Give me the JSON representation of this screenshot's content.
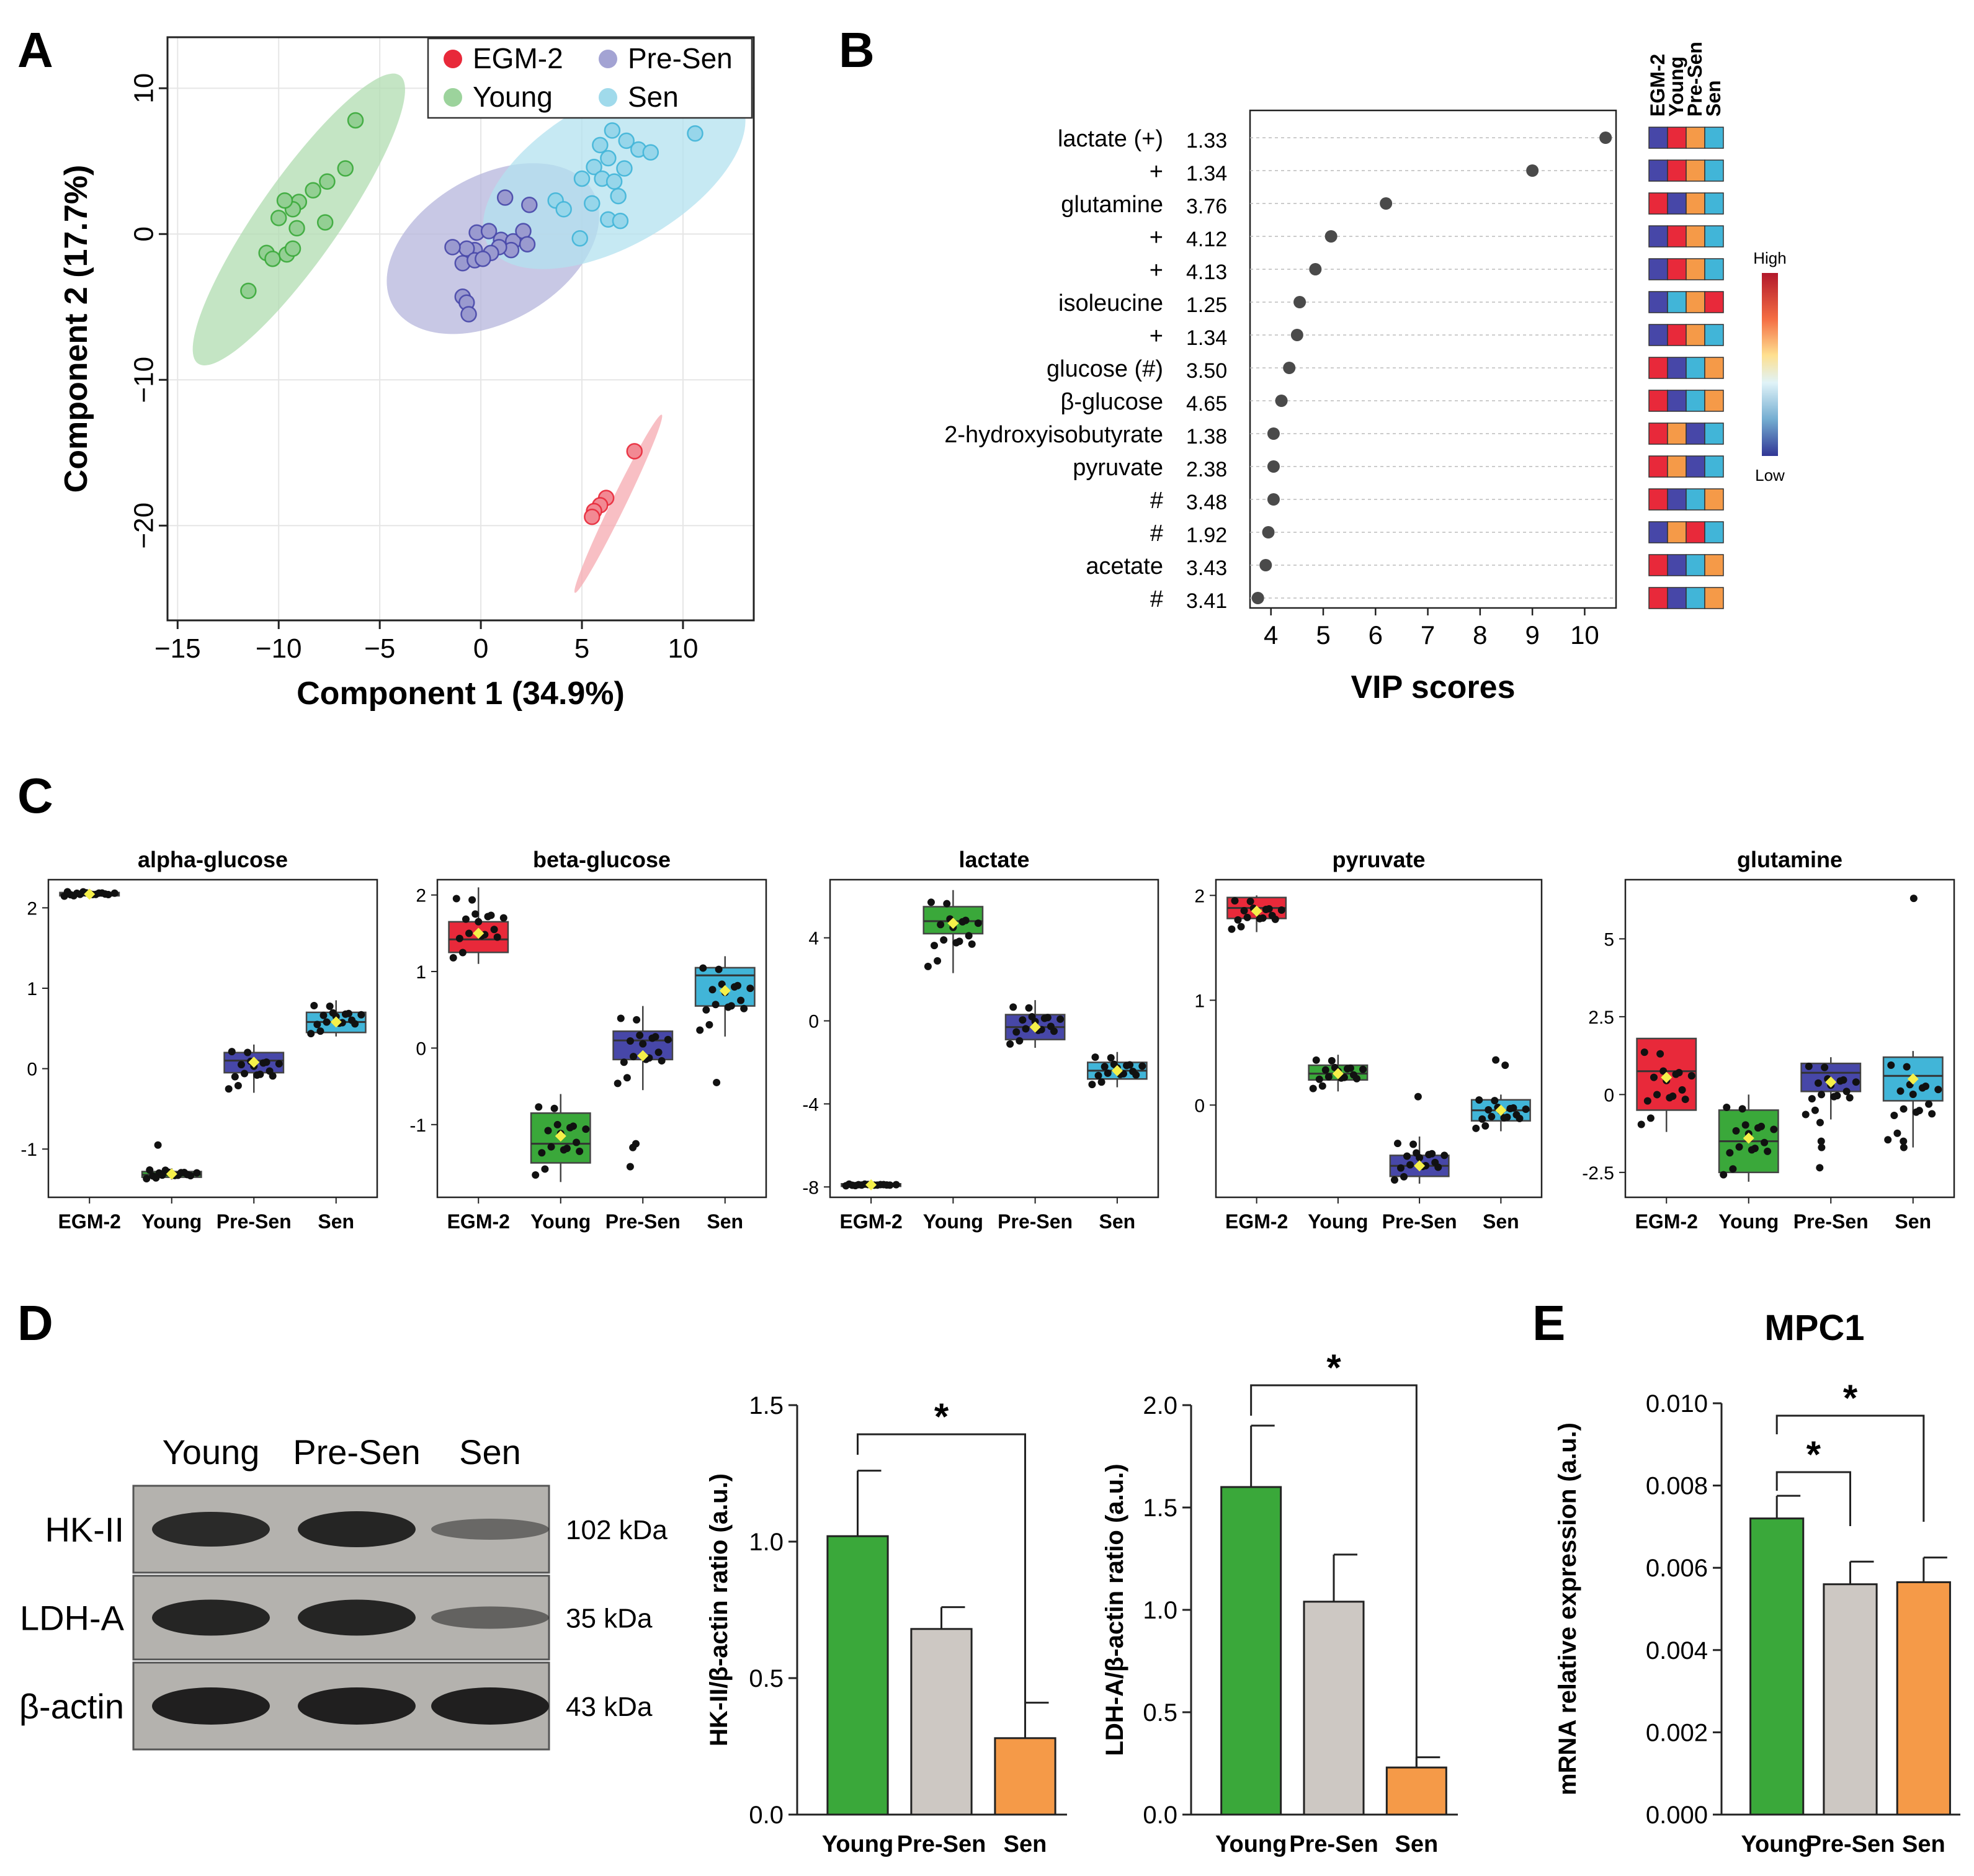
{
  "colors": {
    "EGM-2": "#e8293a",
    "Young": "#3aa83a",
    "Pre-Sen": "#4747a8",
    "Sen": "#41b5d8",
    "grey": "#cdc8c3",
    "orange": "#f59a48"
  },
  "panels": {
    "A": "A",
    "B": "B",
    "C": "C",
    "D": "D",
    "E": "E"
  },
  "chart_data": [
    {
      "id": "A",
      "type": "scatter",
      "xlabel": "Component 1 (34.9%)",
      "ylabel": "Component 2 (17.7%)",
      "xlim": [
        -15.5,
        13.5
      ],
      "ylim": [
        -26.5,
        13.5
      ],
      "xticks": [
        -15,
        -10,
        -5,
        0,
        5,
        10
      ],
      "yticks": [
        10,
        0,
        -10,
        -20
      ],
      "legend": {
        "placement": "top-right",
        "entries": [
          "EGM-2",
          "Pre-Sen",
          "Young",
          "Sen"
        ]
      },
      "grid": true,
      "series": [
        {
          "name": "EGM-2",
          "ellipse": {
            "cx": 6.8,
            "cy": -18.5,
            "rx": 4.9,
            "ry": 0.35,
            "angle": 64
          },
          "points": [
            [
              7.6,
              -14.9
            ],
            [
              6.2,
              -18.1
            ],
            [
              5.9,
              -18.6
            ],
            [
              5.6,
              -19.0
            ],
            [
              5.5,
              -19.4
            ]
          ]
        },
        {
          "name": "Young",
          "ellipse": {
            "cx": -9.0,
            "cy": 1.0,
            "rx": 8.7,
            "ry": 2.0,
            "angle": 55
          },
          "points": [
            [
              -6.2,
              7.8
            ],
            [
              -6.7,
              4.5
            ],
            [
              -7.6,
              3.6
            ],
            [
              -8.3,
              3.0
            ],
            [
              -9.0,
              2.2
            ],
            [
              -9.3,
              1.7
            ],
            [
              -9.7,
              2.3
            ],
            [
              -10.0,
              1.1
            ],
            [
              -9.1,
              0.4
            ],
            [
              -7.7,
              0.8
            ],
            [
              -10.6,
              -1.3
            ],
            [
              -10.3,
              -1.7
            ],
            [
              -9.6,
              -1.4
            ],
            [
              -9.3,
              -1.0
            ],
            [
              -11.5,
              -3.9
            ]
          ]
        },
        {
          "name": "Pre-Sen",
          "ellipse": {
            "cx": 0.6,
            "cy": -1.0,
            "rx": 5.7,
            "ry": 3.6,
            "angle": 30
          },
          "points": [
            [
              1.2,
              2.5
            ],
            [
              2.4,
              2.0
            ],
            [
              -0.2,
              0.1
            ],
            [
              0.4,
              0.2
            ],
            [
              1.0,
              -0.4
            ],
            [
              1.6,
              -0.5
            ],
            [
              2.1,
              0.2
            ],
            [
              2.3,
              -0.7
            ],
            [
              1.5,
              -1.1
            ],
            [
              0.9,
              -0.9
            ],
            [
              0.5,
              -1.3
            ],
            [
              -0.3,
              -1.1
            ],
            [
              -0.7,
              -1.0
            ],
            [
              -1.4,
              -0.9
            ],
            [
              -0.9,
              -2.0
            ],
            [
              -0.3,
              -1.8
            ],
            [
              0.1,
              -1.7
            ],
            [
              -0.9,
              -4.3
            ],
            [
              -0.7,
              -4.7
            ],
            [
              -0.6,
              -5.5
            ]
          ]
        },
        {
          "name": "Sen",
          "ellipse": {
            "cx": 6.6,
            "cy": 4.2,
            "rx": 7.2,
            "ry": 3.6,
            "angle": 30
          },
          "points": [
            [
              6.5,
              7.1
            ],
            [
              7.2,
              6.4
            ],
            [
              10.6,
              6.9
            ],
            [
              5.9,
              6.1
            ],
            [
              7.8,
              5.8
            ],
            [
              8.4,
              5.6
            ],
            [
              6.3,
              5.2
            ],
            [
              5.6,
              4.6
            ],
            [
              7.1,
              4.5
            ],
            [
              6.0,
              3.8
            ],
            [
              6.6,
              3.6
            ],
            [
              5.0,
              3.8
            ],
            [
              6.8,
              2.6
            ],
            [
              5.5,
              2.1
            ],
            [
              3.7,
              2.3
            ],
            [
              4.1,
              1.7
            ],
            [
              6.3,
              1.0
            ],
            [
              6.9,
              0.9
            ],
            [
              4.9,
              -0.3
            ]
          ]
        }
      ]
    },
    {
      "id": "B",
      "type": "dot",
      "xlabel": "VIP scores",
      "xlim": [
        3.6,
        10.6
      ],
      "xticks": [
        4,
        5,
        6,
        7,
        8,
        9,
        10
      ],
      "heatmap_columns": [
        "EGM-2",
        "Young",
        "Pre-Sen",
        "Sen"
      ],
      "colorbar": {
        "high": "High",
        "low": "Low"
      },
      "rows": [
        {
          "label": "lactate (+)",
          "ppm": "1.33",
          "vip": 10.4,
          "cells": [
            "Pre-Sen",
            "EGM-2",
            "orange",
            "Sen"
          ]
        },
        {
          "label": "+",
          "ppm": "1.34",
          "vip": 9.0,
          "cells": [
            "Pre-Sen",
            "EGM-2",
            "orange",
            "Sen"
          ]
        },
        {
          "label": "glutamine",
          "ppm": "3.76",
          "vip": 6.2,
          "cells": [
            "EGM-2",
            "Pre-Sen",
            "orange",
            "Sen"
          ]
        },
        {
          "label": "+",
          "ppm": "4.12",
          "vip": 5.15,
          "cells": [
            "Pre-Sen",
            "EGM-2",
            "orange",
            "Sen"
          ]
        },
        {
          "label": "+",
          "ppm": "4.13",
          "vip": 4.85,
          "cells": [
            "Pre-Sen",
            "EGM-2",
            "orange",
            "Sen"
          ]
        },
        {
          "label": "isoleucine",
          "ppm": "1.25",
          "vip": 4.55,
          "cells": [
            "Pre-Sen",
            "Sen",
            "orange",
            "EGM-2"
          ]
        },
        {
          "label": "+",
          "ppm": "1.34",
          "vip": 4.5,
          "cells": [
            "Pre-Sen",
            "EGM-2",
            "orange",
            "Sen"
          ]
        },
        {
          "label": "glucose (#)",
          "ppm": "3.50",
          "vip": 4.35,
          "cells": [
            "EGM-2",
            "Pre-Sen",
            "Sen",
            "orange"
          ]
        },
        {
          "label": "β-glucose",
          "ppm": "4.65",
          "vip": 4.2,
          "cells": [
            "EGM-2",
            "Pre-Sen",
            "Sen",
            "orange"
          ]
        },
        {
          "label": "2-hydroxyisobutyrate",
          "ppm": "1.38",
          "vip": 4.05,
          "cells": [
            "EGM-2",
            "orange",
            "Pre-Sen",
            "Sen"
          ]
        },
        {
          "label": "pyruvate",
          "ppm": "2.38",
          "vip": 4.05,
          "cells": [
            "EGM-2",
            "orange",
            "Pre-Sen",
            "Sen"
          ]
        },
        {
          "label": "#",
          "ppm": "3.48",
          "vip": 4.05,
          "cells": [
            "EGM-2",
            "Pre-Sen",
            "Sen",
            "orange"
          ]
        },
        {
          "label": "#",
          "ppm": "1.92",
          "vip": 3.95,
          "cells": [
            "Pre-Sen",
            "orange",
            "EGM-2",
            "Sen"
          ]
        },
        {
          "label": "acetate",
          "ppm": "3.43",
          "vip": 3.9,
          "cells": [
            "EGM-2",
            "Pre-Sen",
            "Sen",
            "orange"
          ]
        },
        {
          "label": "#",
          "ppm": "3.41",
          "vip": 3.75,
          "cells": [
            "EGM-2",
            "Pre-Sen",
            "Sen",
            "orange"
          ]
        }
      ]
    },
    {
      "id": "C",
      "type": "box",
      "categories": [
        "EGM-2",
        "Young",
        "Pre-Sen",
        "Sen"
      ],
      "plots": [
        {
          "title": "alpha-glucose",
          "ylim": [
            -1.6,
            2.35
          ],
          "yticks": [
            2,
            1,
            0,
            -1
          ],
          "yticklabels": [
            "2",
            "1",
            "0",
            "-1"
          ],
          "boxes": [
            {
              "q1": 2.15,
              "med": 2.17,
              "q3": 2.19,
              "lo": 2.14,
              "hi": 2.21,
              "mean": 2.17
            },
            {
              "q1": -1.35,
              "med": -1.32,
              "q3": -1.28,
              "lo": -1.38,
              "hi": -1.24,
              "mean": -1.31
            },
            {
              "q1": -0.05,
              "med": 0.1,
              "q3": 0.2,
              "lo": -0.3,
              "hi": 0.3,
              "mean": 0.08
            },
            {
              "q1": 0.45,
              "med": 0.58,
              "q3": 0.7,
              "lo": 0.4,
              "hi": 0.85,
              "mean": 0.58
            }
          ],
          "outliers": [
            [
              1,
              -0.95
            ]
          ]
        },
        {
          "title": "beta-glucose",
          "ylim": [
            -1.95,
            2.2
          ],
          "yticks": [
            2,
            1,
            0,
            -1
          ],
          "yticklabels": [
            "2",
            "1",
            "0",
            "-1"
          ],
          "boxes": [
            {
              "q1": 1.25,
              "med": 1.42,
              "q3": 1.65,
              "lo": 1.1,
              "hi": 2.1,
              "mean": 1.5
            },
            {
              "q1": -1.5,
              "med": -1.25,
              "q3": -0.85,
              "lo": -1.75,
              "hi": -0.6,
              "mean": -1.15
            },
            {
              "q1": -0.15,
              "med": 0.1,
              "q3": 0.22,
              "lo": -0.55,
              "hi": 0.55,
              "mean": -0.1
            },
            {
              "q1": 0.55,
              "med": 0.95,
              "q3": 1.05,
              "lo": 0.15,
              "hi": 1.2,
              "mean": 0.75
            }
          ],
          "outliers": [
            [
              2,
              -1.25
            ],
            [
              2,
              -1.55
            ],
            [
              2,
              -1.3
            ],
            [
              3,
              -0.45
            ]
          ]
        },
        {
          "title": "lactate",
          "ylim": [
            -8.5,
            6.8
          ],
          "yticks": [
            4,
            0,
            -4,
            -8
          ],
          "yticklabels": [
            "4",
            "0",
            "-4",
            "-8"
          ],
          "boxes": [
            {
              "q1": -7.95,
              "med": -7.9,
              "q3": -7.85,
              "lo": -7.95,
              "hi": -7.85,
              "mean": -7.9
            },
            {
              "q1": 4.2,
              "med": 4.8,
              "q3": 5.5,
              "lo": 2.3,
              "hi": 6.3,
              "mean": 4.7
            },
            {
              "q1": -0.9,
              "med": -0.3,
              "q3": 0.3,
              "lo": -1.3,
              "hi": 1.0,
              "mean": -0.3
            },
            {
              "q1": -2.8,
              "med": -2.4,
              "q3": -2.0,
              "lo": -3.2,
              "hi": -1.5,
              "mean": -2.4
            }
          ],
          "outliers": []
        },
        {
          "title": "pyruvate",
          "ylim": [
            -0.88,
            2.15
          ],
          "yticks": [
            2,
            1,
            0
          ],
          "yticklabels": [
            "2",
            "1",
            "0"
          ],
          "boxes": [
            {
              "q1": 1.78,
              "med": 1.88,
              "q3": 1.98,
              "lo": 1.65,
              "hi": 2.0,
              "mean": 1.85
            },
            {
              "q1": 0.24,
              "med": 0.3,
              "q3": 0.38,
              "lo": 0.13,
              "hi": 0.48,
              "mean": 0.3
            },
            {
              "q1": -0.68,
              "med": -0.58,
              "q3": -0.48,
              "lo": -0.75,
              "hi": -0.3,
              "mean": -0.58
            },
            {
              "q1": -0.15,
              "med": -0.05,
              "q3": 0.05,
              "lo": -0.25,
              "hi": 0.1,
              "mean": -0.05
            }
          ],
          "outliers": [
            [
              2,
              0.08
            ],
            [
              3,
              0.43
            ],
            [
              3,
              0.38
            ]
          ]
        },
        {
          "title": "glutamine",
          "ylim": [
            -3.3,
            6.9
          ],
          "yticks": [
            5,
            2.5,
            0,
            -2.5
          ],
          "yticklabels": [
            "5",
            "2.5",
            "0",
            "-2.5"
          ],
          "boxes": [
            {
              "q1": -0.5,
              "med": 0.75,
              "q3": 1.8,
              "lo": -1.2,
              "hi": 1.8,
              "mean": 0.55
            },
            {
              "q1": -2.5,
              "med": -1.5,
              "q3": -0.5,
              "lo": -2.8,
              "hi": 0.0,
              "mean": -1.4
            },
            {
              "q1": 0.1,
              "med": 0.7,
              "q3": 1.0,
              "lo": -0.8,
              "hi": 1.2,
              "mean": 0.4
            },
            {
              "q1": -0.2,
              "med": 0.6,
              "q3": 1.2,
              "lo": -1.7,
              "hi": 1.4,
              "mean": 0.5
            }
          ],
          "outliers": [
            [
              2,
              -2.35
            ],
            [
              2,
              -1.7
            ],
            [
              2,
              -1.5
            ],
            [
              2,
              -0.9
            ],
            [
              3,
              6.3
            ],
            [
              3,
              -1.5
            ],
            [
              3,
              -1.7
            ]
          ]
        }
      ]
    },
    {
      "id": "D-blot",
      "type": "table",
      "lanes": [
        "Young",
        "Pre-Sen",
        "Sen"
      ],
      "bands": [
        {
          "name": "HK-II",
          "kda": "102 kDa",
          "intensity": [
            0.85,
            0.9,
            0.3
          ]
        },
        {
          "name": "LDH-A",
          "kda": "35 kDa",
          "intensity": [
            0.9,
            0.9,
            0.35
          ]
        },
        {
          "name": "β-actin",
          "kda": "43 kDa",
          "intensity": [
            0.95,
            0.95,
            0.95
          ]
        }
      ]
    },
    {
      "id": "D1",
      "type": "bar",
      "categories": [
        "Young",
        "Pre-Sen",
        "Sen"
      ],
      "ylabel": "HK-II/β-actin ratio (a.u.)",
      "ylim": [
        0,
        1.5
      ],
      "yticks": [
        0,
        0.5,
        1.0,
        1.5
      ],
      "yticklabels": [
        "0.0",
        "0.5",
        "1.0",
        "1.5"
      ],
      "values": [
        1.02,
        0.68,
        0.28
      ],
      "errors": [
        0.24,
        0.08,
        0.13
      ],
      "colors": [
        "#3aa83a",
        "#cdc8c3",
        "#f59a48"
      ],
      "significance": [
        {
          "from": 0,
          "to": 2,
          "label": "*"
        }
      ]
    },
    {
      "id": "D2",
      "type": "bar",
      "categories": [
        "Young",
        "Pre-Sen",
        "Sen"
      ],
      "ylabel": "LDH-A/β-actin ratio (a.u.)",
      "ylim": [
        0,
        2.0
      ],
      "yticks": [
        0,
        0.5,
        1.0,
        1.5,
        2.0
      ],
      "yticklabels": [
        "0.0",
        "0.5",
        "1.0",
        "1.5",
        "2.0"
      ],
      "values": [
        1.6,
        1.04,
        0.23
      ],
      "errors": [
        0.3,
        0.23,
        0.05
      ],
      "colors": [
        "#3aa83a",
        "#cdc8c3",
        "#f59a48"
      ],
      "significance": [
        {
          "from": 0,
          "to": 2,
          "label": "*"
        }
      ]
    },
    {
      "id": "E",
      "type": "bar",
      "title": "MPC1",
      "categories": [
        "Young",
        "Pre-Sen",
        "Sen"
      ],
      "ylabel": "mRNA relative expression (a.u.)",
      "ylim": [
        0,
        0.01
      ],
      "yticks": [
        0,
        0.002,
        0.004,
        0.006,
        0.008,
        0.01
      ],
      "yticklabels": [
        "0.000",
        "0.002",
        "0.004",
        "0.006",
        "0.008",
        "0.010"
      ],
      "values": [
        0.0072,
        0.0056,
        0.00565
      ],
      "errors": [
        0.00055,
        0.00055,
        0.0006
      ],
      "colors": [
        "#3aa83a",
        "#cdc8c3",
        "#f59a48"
      ],
      "significance": [
        {
          "from": 0,
          "to": 1,
          "label": "*"
        },
        {
          "from": 0,
          "to": 2,
          "label": "*"
        }
      ]
    }
  ]
}
